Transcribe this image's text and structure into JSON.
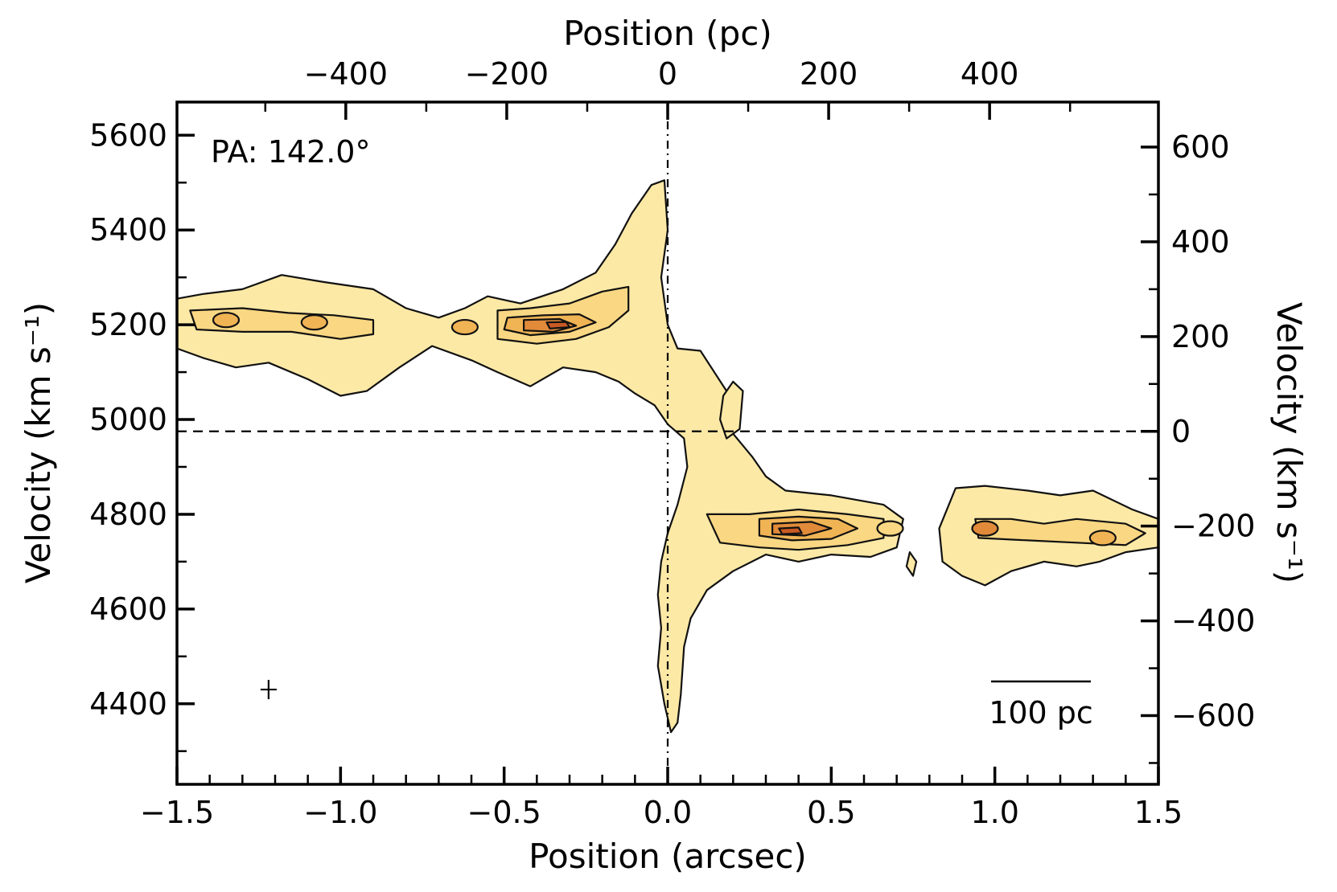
{
  "chart_data": {
    "type": "contour",
    "annotation": "PA: 142.0°",
    "scale_bar_label": "100 pc",
    "colors": {
      "level_1": "#fde9a6",
      "level_2": "#f9d783",
      "level_3": "#f0b455",
      "level_4": "#e08a3a",
      "level_5": "#c95a24",
      "contour_line": "#111111"
    },
    "x_bottom": {
      "label": "Position (arcsec)",
      "lim": [
        -1.5,
        1.5
      ],
      "ticks": [
        -1.5,
        -1.0,
        -0.5,
        0.0,
        0.5,
        1.0,
        1.5
      ],
      "tick_labels": [
        "−1.5",
        "−1.0",
        "−0.5",
        "0.0",
        "0.5",
        "1.0",
        "1.5"
      ]
    },
    "x_top": {
      "label": "Position (pc)",
      "ticks": [
        -400,
        -200,
        0,
        200,
        400
      ],
      "tick_labels": [
        "−400",
        "−200",
        "0",
        "200",
        "400"
      ]
    },
    "y_left": {
      "label": "Velocity (km s⁻¹)",
      "lim": [
        4230,
        5670
      ],
      "ticks": [
        4400,
        4600,
        4800,
        5000,
        5200,
        5400,
        5600
      ],
      "tick_labels": [
        "4400",
        "4600",
        "4800",
        "5000",
        "5200",
        "5400",
        "5600"
      ]
    },
    "y_right": {
      "label": "Velocity (km s⁻¹)",
      "ticks": [
        -600,
        -400,
        -200,
        0,
        200,
        400,
        600
      ],
      "tick_labels": [
        "−600",
        "−400",
        "−200",
        "0",
        "200",
        "400",
        "600"
      ]
    },
    "systemic_velocity": 4975,
    "center_position": 0.0,
    "beam_marker": {
      "position": -1.22,
      "velocity": 4430
    },
    "emission_regions": [
      {
        "level": 1,
        "points": [
          [
            -1.5,
            5150
          ],
          [
            -1.5,
            5255
          ],
          [
            -1.42,
            5265
          ],
          [
            -1.3,
            5275
          ],
          [
            -1.18,
            5305
          ],
          [
            -1.05,
            5290
          ],
          [
            -0.9,
            5275
          ],
          [
            -0.8,
            5235
          ],
          [
            -0.7,
            5215
          ],
          [
            -0.62,
            5235
          ],
          [
            -0.55,
            5260
          ],
          [
            -0.45,
            5245
          ],
          [
            -0.32,
            5275
          ],
          [
            -0.22,
            5310
          ],
          [
            -0.16,
            5370
          ],
          [
            -0.11,
            5435
          ],
          [
            -0.05,
            5495
          ],
          [
            -0.01,
            5505
          ],
          [
            0.0,
            5400
          ],
          [
            -0.02,
            5300
          ],
          [
            0.0,
            5200
          ],
          [
            0.03,
            5150
          ],
          [
            0.1,
            5145
          ],
          [
            0.18,
            5060
          ],
          [
            0.2,
            4970
          ],
          [
            0.26,
            4920
          ],
          [
            0.3,
            4880
          ],
          [
            0.36,
            4850
          ],
          [
            0.5,
            4840
          ],
          [
            0.66,
            4820
          ],
          [
            0.72,
            4790
          ],
          [
            0.7,
            4730
          ],
          [
            0.62,
            4710
          ],
          [
            0.5,
            4715
          ],
          [
            0.4,
            4700
          ],
          [
            0.3,
            4715
          ],
          [
            0.2,
            4680
          ],
          [
            0.12,
            4640
          ],
          [
            0.07,
            4580
          ],
          [
            0.05,
            4520
          ],
          [
            0.04,
            4420
          ],
          [
            0.03,
            4360
          ],
          [
            0.01,
            4340
          ],
          [
            -0.01,
            4400
          ],
          [
            -0.03,
            4480
          ],
          [
            -0.02,
            4560
          ],
          [
            -0.03,
            4630
          ],
          [
            -0.02,
            4700
          ],
          [
            0.0,
            4760
          ],
          [
            0.03,
            4820
          ],
          [
            0.06,
            4900
          ],
          [
            0.05,
            4960
          ],
          [
            0.0,
            4990
          ],
          [
            -0.04,
            5030
          ],
          [
            -0.1,
            5055
          ],
          [
            -0.15,
            5080
          ],
          [
            -0.22,
            5100
          ],
          [
            -0.32,
            5110
          ],
          [
            -0.42,
            5070
          ],
          [
            -0.52,
            5100
          ],
          [
            -0.6,
            5125
          ],
          [
            -0.72,
            5155
          ],
          [
            -0.82,
            5110
          ],
          [
            -0.92,
            5060
          ],
          [
            -1.0,
            5050
          ],
          [
            -1.1,
            5085
          ],
          [
            -1.22,
            5120
          ],
          [
            -1.32,
            5110
          ],
          [
            -1.42,
            5130
          ]
        ]
      },
      {
        "level": 1,
        "points": [
          [
            0.17,
            5050
          ],
          [
            0.2,
            5080
          ],
          [
            0.23,
            5060
          ],
          [
            0.22,
            4980
          ],
          [
            0.18,
            4960
          ],
          [
            0.16,
            5000
          ]
        ]
      },
      {
        "level": 1,
        "points": [
          [
            0.88,
            4855
          ],
          [
            0.97,
            4860
          ],
          [
            1.1,
            4850
          ],
          [
            1.2,
            4840
          ],
          [
            1.3,
            4850
          ],
          [
            1.42,
            4810
          ],
          [
            1.5,
            4790
          ],
          [
            1.5,
            4730
          ],
          [
            1.4,
            4720
          ],
          [
            1.32,
            4700
          ],
          [
            1.25,
            4690
          ],
          [
            1.15,
            4700
          ],
          [
            1.05,
            4680
          ],
          [
            0.97,
            4650
          ],
          [
            0.9,
            4670
          ],
          [
            0.84,
            4700
          ],
          [
            0.83,
            4770
          ]
        ]
      },
      {
        "level": 1,
        "points": [
          [
            0.74,
            4720
          ],
          [
            0.76,
            4700
          ],
          [
            0.75,
            4670
          ],
          [
            0.73,
            4690
          ]
        ]
      },
      {
        "level": 2,
        "points": [
          [
            -1.46,
            5230
          ],
          [
            -1.3,
            5235
          ],
          [
            -1.16,
            5225
          ],
          [
            -1.02,
            5220
          ],
          [
            -0.9,
            5210
          ],
          [
            -0.9,
            5180
          ],
          [
            -1.0,
            5170
          ],
          [
            -1.15,
            5185
          ],
          [
            -1.3,
            5185
          ],
          [
            -1.44,
            5190
          ]
        ]
      },
      {
        "level": 2,
        "points": [
          [
            -0.52,
            5230
          ],
          [
            -0.42,
            5235
          ],
          [
            -0.3,
            5245
          ],
          [
            -0.2,
            5270
          ],
          [
            -0.12,
            5280
          ],
          [
            -0.12,
            5230
          ],
          [
            -0.18,
            5195
          ],
          [
            -0.28,
            5170
          ],
          [
            -0.4,
            5160
          ],
          [
            -0.52,
            5170
          ]
        ]
      },
      {
        "level": 2,
        "points": [
          [
            0.12,
            4800
          ],
          [
            0.25,
            4800
          ],
          [
            0.4,
            4810
          ],
          [
            0.55,
            4800
          ],
          [
            0.66,
            4790
          ],
          [
            0.66,
            4750
          ],
          [
            0.55,
            4735
          ],
          [
            0.4,
            4725
          ],
          [
            0.28,
            4730
          ],
          [
            0.16,
            4740
          ]
        ]
      },
      {
        "level": 2,
        "points": [
          [
            0.94,
            4790
          ],
          [
            1.05,
            4790
          ],
          [
            1.15,
            4780
          ],
          [
            1.25,
            4790
          ],
          [
            1.4,
            4780
          ],
          [
            1.46,
            4760
          ],
          [
            1.4,
            4735
          ],
          [
            1.25,
            4740
          ],
          [
            1.1,
            4745
          ],
          [
            0.95,
            4750
          ]
        ]
      },
      {
        "level": 3,
        "points": [
          [
            -0.49,
            5215
          ],
          [
            -0.38,
            5220
          ],
          [
            -0.27,
            5222
          ],
          [
            -0.22,
            5205
          ],
          [
            -0.3,
            5185
          ],
          [
            -0.42,
            5178
          ],
          [
            -0.5,
            5190
          ]
        ]
      },
      {
        "level": 3,
        "points": [
          [
            0.28,
            4790
          ],
          [
            0.4,
            4795
          ],
          [
            0.52,
            4790
          ],
          [
            0.58,
            4770
          ],
          [
            0.5,
            4748
          ],
          [
            0.38,
            4745
          ],
          [
            0.28,
            4755
          ]
        ]
      },
      {
        "level": 4,
        "points": [
          [
            -0.44,
            5210
          ],
          [
            -0.33,
            5212
          ],
          [
            -0.28,
            5198
          ],
          [
            -0.35,
            5185
          ],
          [
            -0.44,
            5188
          ]
        ]
      },
      {
        "level": 4,
        "points": [
          [
            0.32,
            4780
          ],
          [
            0.44,
            4784
          ],
          [
            0.5,
            4770
          ],
          [
            0.42,
            4755
          ],
          [
            0.32,
            4758
          ]
        ]
      },
      {
        "level": 5,
        "points": [
          [
            -0.37,
            5205
          ],
          [
            -0.31,
            5206
          ],
          [
            -0.3,
            5195
          ],
          [
            -0.36,
            5192
          ]
        ]
      },
      {
        "level": 5,
        "points": [
          [
            0.34,
            4770
          ],
          [
            0.4,
            4772
          ],
          [
            0.41,
            4760
          ],
          [
            0.35,
            4758
          ]
        ]
      }
    ],
    "knots": [
      {
        "position": -1.35,
        "velocity": 5210,
        "level": 3
      },
      {
        "position": -1.08,
        "velocity": 5205,
        "level": 3
      },
      {
        "position": -0.62,
        "velocity": 5195,
        "level": 3
      },
      {
        "position": 0.97,
        "velocity": 4770,
        "level": 4
      },
      {
        "position": 1.33,
        "velocity": 4750,
        "level": 3
      },
      {
        "position": 0.68,
        "velocity": 4770,
        "level": 2
      }
    ]
  }
}
